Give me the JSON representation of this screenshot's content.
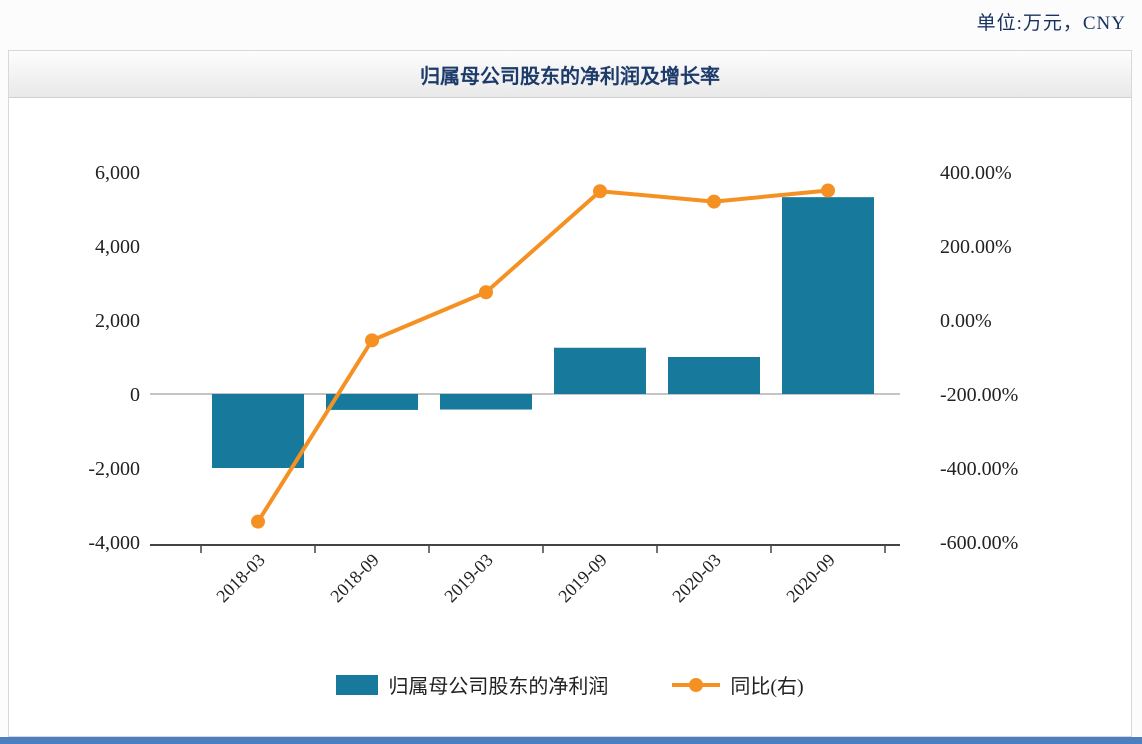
{
  "page": {
    "unit_label": "单位:万元，CNY",
    "title": "归属母公司股东的净利润及增长率",
    "accent_bar_color": "#4c7fc1"
  },
  "chart_data": {
    "type": "bar",
    "subtype": "bar+line combo, dual axis",
    "title": "归属母公司股东的净利润及增长率",
    "categories": [
      "2018-03",
      "2018-09",
      "2019-03",
      "2019-09",
      "2020-03",
      "2020-09"
    ],
    "series": [
      {
        "name": "归属母公司股东的净利润",
        "type": "bar",
        "axis": "left",
        "color": "#177a9c",
        "values": [
          -2000,
          -430,
          -420,
          1250,
          1000,
          5320
        ]
      },
      {
        "name": "同比(右)",
        "type": "line",
        "axis": "right",
        "color": "#f59123",
        "values": [
          -545,
          -55,
          75,
          348,
          320,
          350
        ]
      }
    ],
    "left_axis": {
      "min": -4000,
      "max": 6000,
      "step": 2000,
      "ticks": [
        "-4,000",
        "-2,000",
        "0",
        "2,000",
        "4,000",
        "6,000"
      ]
    },
    "right_axis": {
      "min": -600,
      "max": 400,
      "step": 200,
      "ticks": [
        "-600.00%",
        "-400.00%",
        "-200.00%",
        "0.00%",
        "200.00%",
        "400.00%"
      ]
    },
    "grid": false,
    "legend_position": "bottom"
  }
}
